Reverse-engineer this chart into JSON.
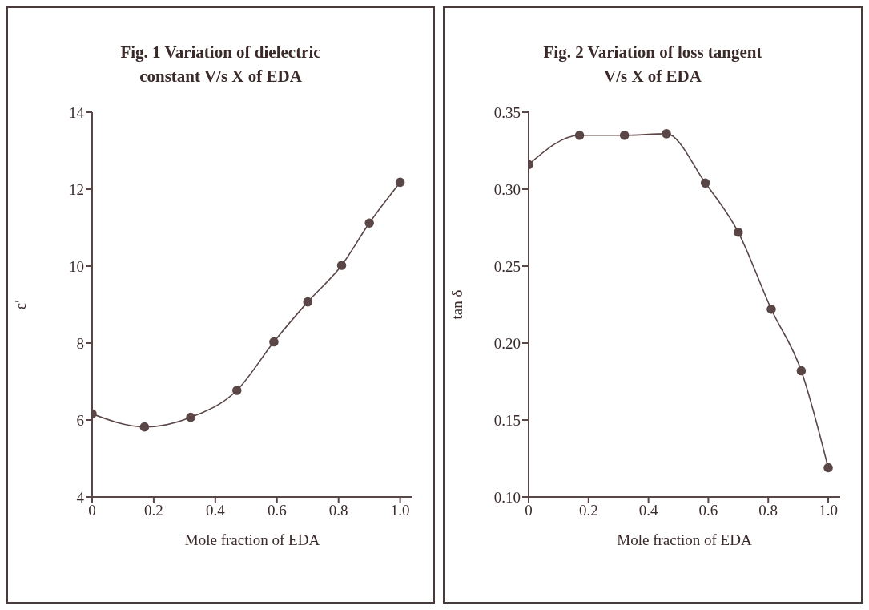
{
  "chart_data": [
    {
      "type": "line",
      "title": "Fig. 1 Variation of dielectric constant V/s X of EDA",
      "xlabel": "Mole fraction of EDA",
      "ylabel": "ε′",
      "x": [
        0,
        0.17,
        0.32,
        0.47,
        0.59,
        0.7,
        0.81,
        0.9,
        1.0
      ],
      "series": [
        {
          "color": "#5a4646",
          "values": [
            6.16,
            5.82,
            6.07,
            6.77,
            8.03,
            9.07,
            10.02,
            11.12,
            12.18
          ]
        }
      ],
      "xlim": [
        0,
        1.04
      ],
      "xticks": [
        0,
        0.2,
        0.4,
        0.6,
        0.8,
        {
          "value": 1,
          "label": "1.0"
        }
      ],
      "ylim": [
        4,
        14
      ],
      "yticks": [
        4,
        6,
        8,
        10,
        12,
        14
      ],
      "marker": "circle",
      "line_style": "solid"
    },
    {
      "type": "line",
      "title": "Fig. 2 Variation of loss tangent V/s X of EDA",
      "xlabel": "Mole fraction of EDA",
      "ylabel": "tan δ",
      "x": [
        0,
        0.17,
        0.32,
        0.46,
        0.59,
        0.7,
        0.81,
        0.91,
        1.0
      ],
      "series": [
        {
          "color": "#5a4646",
          "values": [
            0.316,
            0.335,
            0.335,
            0.336,
            0.304,
            0.272,
            0.222,
            0.182,
            0.119
          ]
        }
      ],
      "xlim": [
        0,
        1.04
      ],
      "xticks": [
        0,
        0.2,
        0.4,
        0.6,
        0.8,
        {
          "value": 1,
          "label": "1.0"
        }
      ],
      "ylim": [
        0.1,
        0.35
      ],
      "yticks": [
        {
          "value": 0.1,
          "label": "0.10"
        },
        {
          "value": 0.15,
          "label": "0.15"
        },
        {
          "value": 0.2,
          "label": "0.20"
        },
        {
          "value": 0.25,
          "label": "0.25"
        },
        {
          "value": 0.3,
          "label": "0.30"
        },
        {
          "value": 0.35,
          "label": "0.35"
        }
      ],
      "marker": "circle",
      "line_style": "solid"
    }
  ]
}
